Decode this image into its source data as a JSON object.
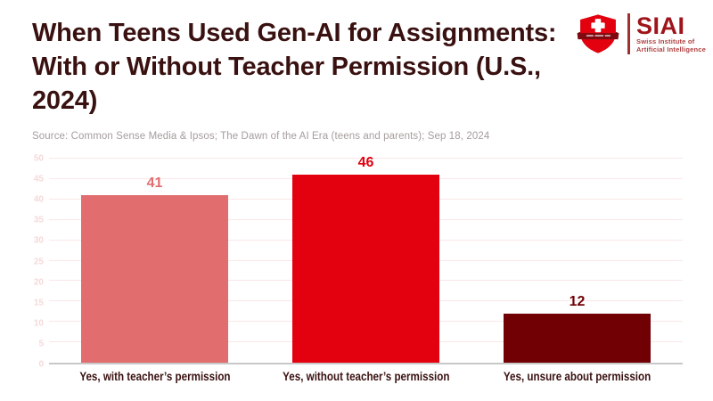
{
  "header": {
    "title": "When Teens Used Gen-AI for Assignments: With or Without Teacher Permission (U.S., 2024)",
    "source": "Source: Common Sense Media & Ipsos; The Dawn of the AI Era (teens and parents); Sep 18, 2024"
  },
  "logo": {
    "acronym": "SIAI",
    "subtitle_line1": "Swiss Institute of",
    "subtitle_line2": "Artificial Intelligence",
    "shield_icon": "swiss-shield-cross-icon"
  },
  "chart_data": {
    "type": "bar",
    "title": "When Teens Used Gen-AI for Assignments: With or Without Teacher Permission (U.S., 2024)",
    "categories": [
      "Yes, with teacher’s permission",
      "Yes, without teacher’s permission",
      "Yes, unsure about permission"
    ],
    "values": [
      41,
      46,
      12
    ],
    "bar_colors": [
      "#e26d6e",
      "#e3000f",
      "#700004"
    ],
    "xlabel": "",
    "ylabel": "",
    "ylim": [
      0,
      50
    ],
    "yticks": [
      0,
      5,
      10,
      15,
      20,
      25,
      30,
      35,
      40,
      45,
      50
    ],
    "grid": true,
    "legend_position": "none",
    "value_labels": true
  },
  "colors": {
    "title_text": "#3a1111",
    "source_text": "#a79c9c",
    "gridline": "#fbe7e7",
    "ytick_text": "#f6d9d9",
    "zero_line": "#c8c8c8",
    "logo_red": "#e3000f",
    "logo_text_red": "#9f151c"
  }
}
